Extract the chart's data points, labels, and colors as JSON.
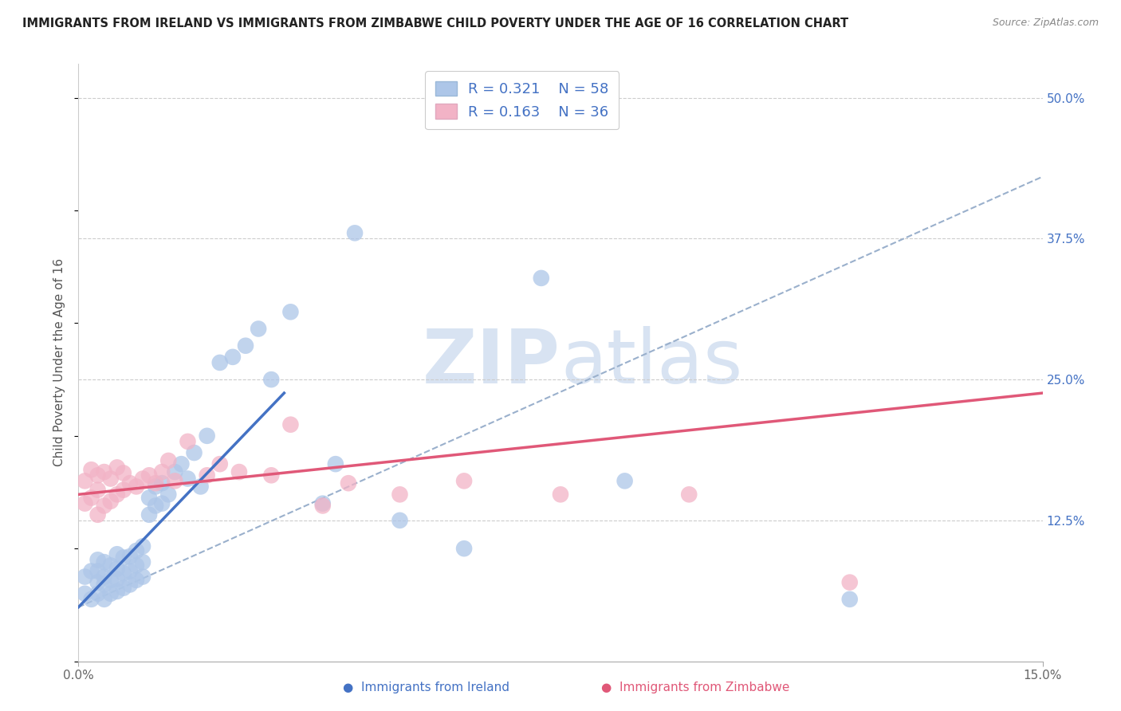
{
  "title": "IMMIGRANTS FROM IRELAND VS IMMIGRANTS FROM ZIMBABWE CHILD POVERTY UNDER THE AGE OF 16 CORRELATION CHART",
  "source": "Source: ZipAtlas.com",
  "ylabel": "Child Poverty Under the Age of 16",
  "ytick_labels": [
    "12.5%",
    "25.0%",
    "37.5%",
    "50.0%"
  ],
  "ytick_values": [
    0.125,
    0.25,
    0.375,
    0.5
  ],
  "xmin": 0.0,
  "xmax": 0.15,
  "ymin": 0.0,
  "ymax": 0.53,
  "legend_r_ireland": "R = 0.321",
  "legend_n_ireland": "N = 58",
  "legend_r_zimbabwe": "R = 0.163",
  "legend_n_zimbabwe": "N = 36",
  "color_ireland": "#adc6e8",
  "color_ireland_line": "#4472c4",
  "color_zimbabwe": "#f2b3c6",
  "color_zimbabwe_line": "#e05878",
  "color_dashed": "#9ab0cc",
  "watermark_color": "#c8d8ed",
  "ireland_scatter_x": [
    0.001,
    0.001,
    0.002,
    0.002,
    0.003,
    0.003,
    0.003,
    0.003,
    0.004,
    0.004,
    0.004,
    0.004,
    0.005,
    0.005,
    0.005,
    0.006,
    0.006,
    0.006,
    0.006,
    0.007,
    0.007,
    0.007,
    0.008,
    0.008,
    0.008,
    0.009,
    0.009,
    0.009,
    0.01,
    0.01,
    0.01,
    0.011,
    0.011,
    0.012,
    0.012,
    0.013,
    0.013,
    0.014,
    0.015,
    0.016,
    0.017,
    0.018,
    0.019,
    0.02,
    0.022,
    0.024,
    0.026,
    0.028,
    0.03,
    0.033,
    0.038,
    0.04,
    0.043,
    0.05,
    0.06,
    0.072,
    0.085,
    0.12
  ],
  "ireland_scatter_y": [
    0.06,
    0.075,
    0.055,
    0.08,
    0.06,
    0.07,
    0.08,
    0.09,
    0.055,
    0.068,
    0.075,
    0.088,
    0.06,
    0.072,
    0.085,
    0.062,
    0.073,
    0.082,
    0.095,
    0.065,
    0.078,
    0.092,
    0.068,
    0.08,
    0.093,
    0.072,
    0.085,
    0.098,
    0.075,
    0.088,
    0.102,
    0.13,
    0.145,
    0.138,
    0.155,
    0.14,
    0.158,
    0.148,
    0.168,
    0.175,
    0.162,
    0.185,
    0.155,
    0.2,
    0.265,
    0.27,
    0.28,
    0.295,
    0.25,
    0.31,
    0.14,
    0.175,
    0.38,
    0.125,
    0.1,
    0.34,
    0.16,
    0.055
  ],
  "zimbabwe_scatter_x": [
    0.001,
    0.001,
    0.002,
    0.002,
    0.003,
    0.003,
    0.003,
    0.004,
    0.004,
    0.005,
    0.005,
    0.006,
    0.006,
    0.007,
    0.007,
    0.008,
    0.009,
    0.01,
    0.011,
    0.012,
    0.013,
    0.014,
    0.015,
    0.017,
    0.02,
    0.022,
    0.025,
    0.03,
    0.033,
    0.038,
    0.042,
    0.05,
    0.06,
    0.075,
    0.095,
    0.12
  ],
  "zimbabwe_scatter_y": [
    0.14,
    0.16,
    0.145,
    0.17,
    0.13,
    0.152,
    0.165,
    0.138,
    0.168,
    0.142,
    0.162,
    0.148,
    0.172,
    0.152,
    0.167,
    0.158,
    0.155,
    0.162,
    0.165,
    0.158,
    0.168,
    0.178,
    0.16,
    0.195,
    0.165,
    0.175,
    0.168,
    0.165,
    0.21,
    0.138,
    0.158,
    0.148,
    0.16,
    0.148,
    0.148,
    0.07
  ],
  "ireland_trend_x": [
    0.0,
    0.032
  ],
  "ireland_trend_y": [
    0.048,
    0.238
  ],
  "zimbabwe_trend_x": [
    0.0,
    0.15
  ],
  "zimbabwe_trend_y": [
    0.148,
    0.238
  ],
  "dashed_trend_x": [
    0.0,
    0.15
  ],
  "dashed_trend_y": [
    0.048,
    0.43
  ],
  "legend_label_ireland": "Immigrants from Ireland",
  "legend_label_zimbabwe": "Immigrants from Zimbabwe"
}
